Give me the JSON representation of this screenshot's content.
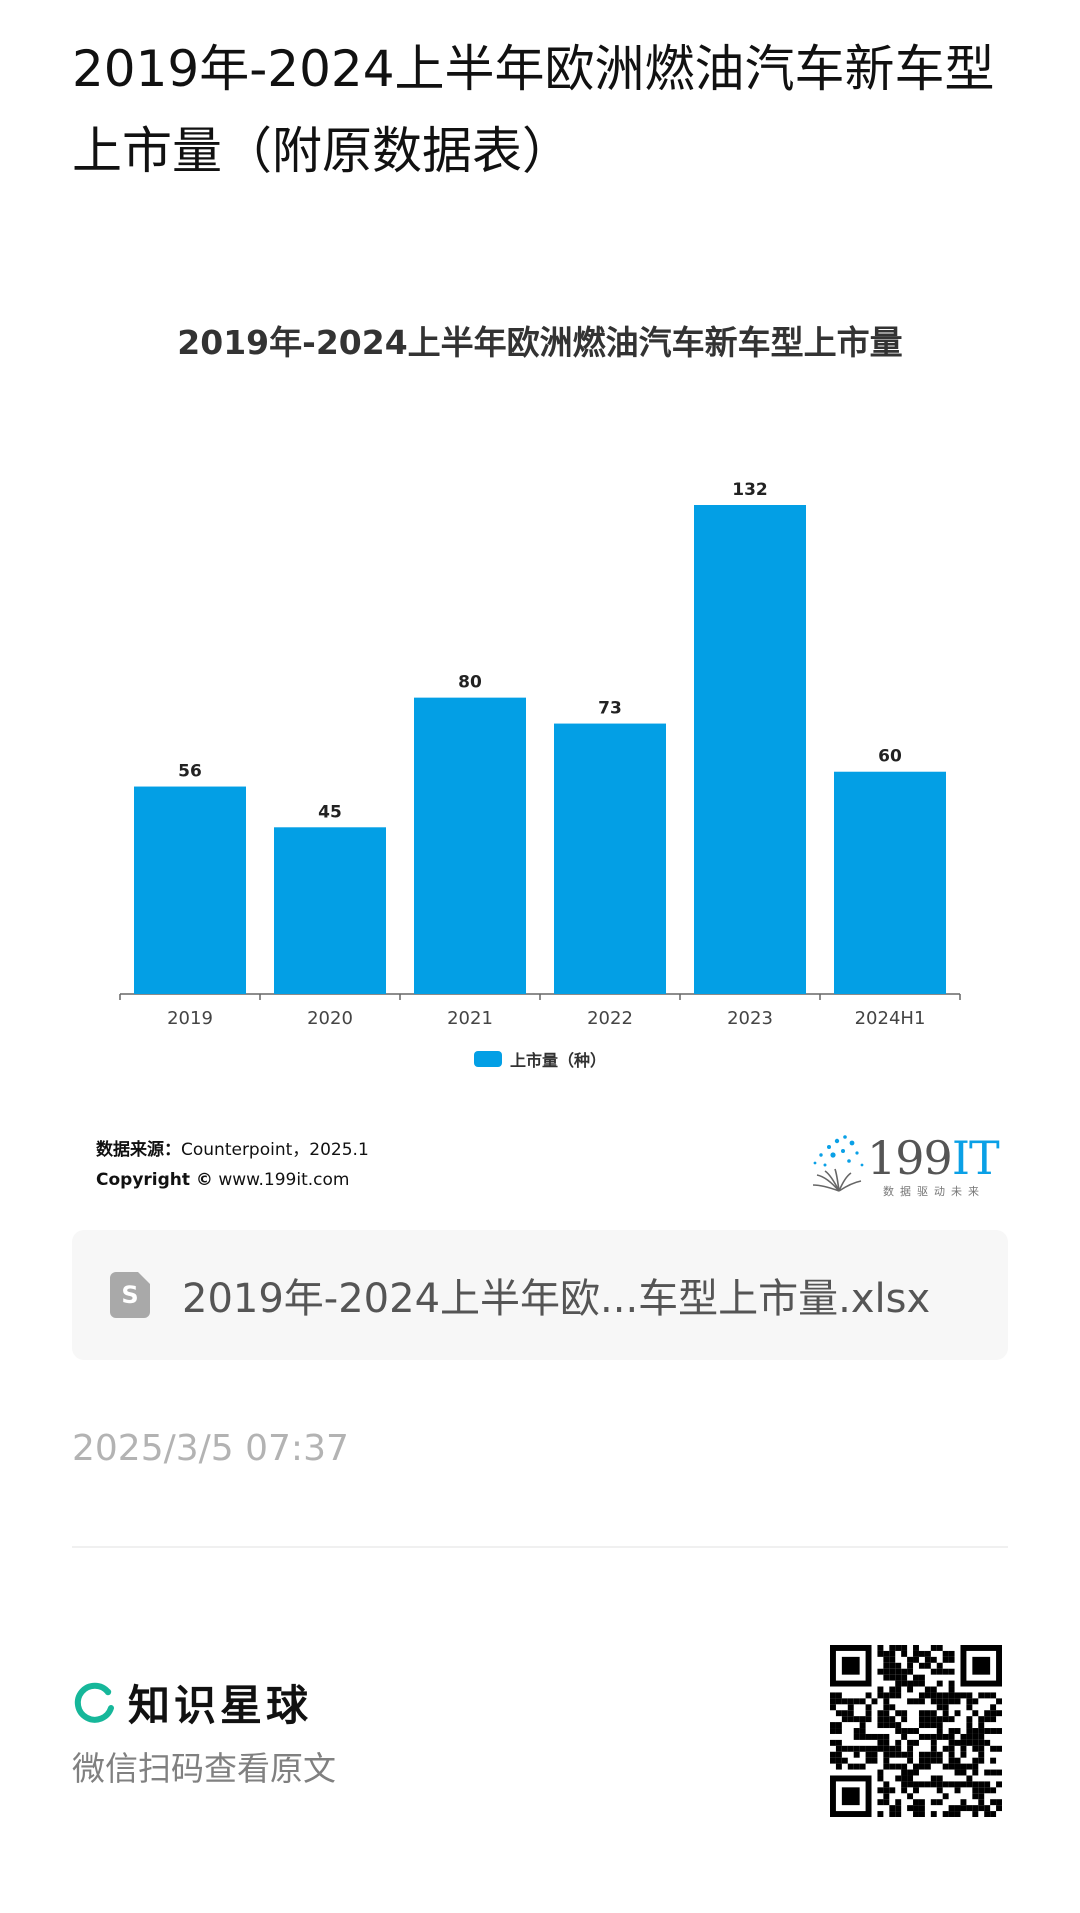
{
  "header": {
    "title": "2019年-2024上半年欧洲燃油汽车新车型上市量（附原数据表）"
  },
  "chart_data": {
    "type": "bar",
    "title": "2019年-2024上半年欧洲燃油汽车新车型上市量",
    "categories": [
      "2019",
      "2020",
      "2021",
      "2022",
      "2023",
      "2024H1"
    ],
    "series": [
      {
        "name": "上市量（种）",
        "values": [
          56,
          45,
          80,
          73,
          132,
          60
        ]
      }
    ],
    "data_labels": [
      "56",
      "45",
      "80",
      "73",
      "132",
      "60"
    ],
    "xlabel": "",
    "ylabel": "",
    "ylim": [
      0,
      132
    ],
    "grid": false,
    "legend": "bottom-center",
    "bar_color": "#039fe5"
  },
  "source": {
    "label": "数据来源：",
    "value": "Counterpoint，2025.1",
    "copyright_label": "Copyright ©",
    "copyright_value": "www.199it.com"
  },
  "brand": {
    "name_num": "199",
    "name_it": "IT",
    "tagline": "数据驱动未来"
  },
  "file": {
    "icon": "S",
    "name": "2019年-2024上半年欧...车型上市量.xlsx"
  },
  "timestamp": "2025/3/5 07:37",
  "footer": {
    "brand_name": "知识星球",
    "hint": "微信扫码查看原文"
  },
  "colors": {
    "accent": "#039fe5",
    "brand_green": "#16b79a"
  }
}
